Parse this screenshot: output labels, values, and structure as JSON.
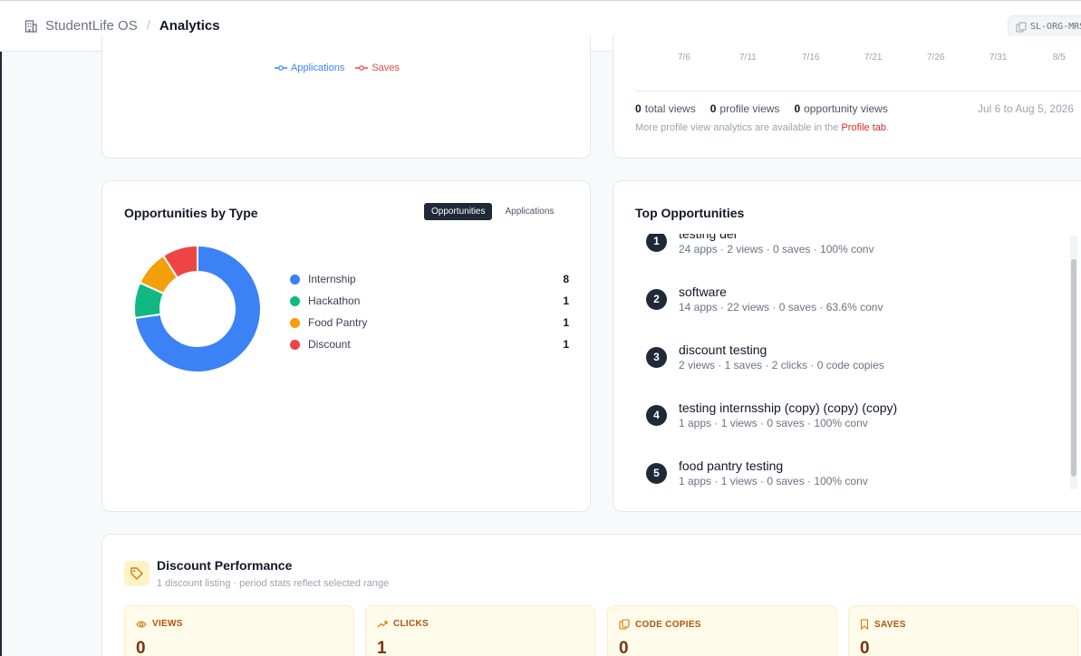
{
  "header": {
    "org_name": "StudentLife OS",
    "separator": "/",
    "page_title": "Analytics",
    "org_code": "SL-ORG-MRS"
  },
  "trend_chart": {
    "legend": [
      {
        "label": "Applications",
        "color": "#3b82f6"
      },
      {
        "label": "Saves",
        "color": "#ef4444"
      }
    ]
  },
  "views_chart": {
    "x_ticks": [
      "7/6",
      "7/11",
      "7/16",
      "7/21",
      "7/26",
      "7/31",
      "8/5"
    ],
    "total_views": "0",
    "total_views_label": "total views",
    "profile_views": "0",
    "profile_views_label": "profile views",
    "opportunity_views": "0",
    "opportunity_views_label": "opportunity views",
    "date_range": "Jul 6 to Aug 5, 2026",
    "note_prefix": "More profile view analytics are available in the ",
    "note_link": "Profile tab",
    "note_suffix": "."
  },
  "opportunities_by_type": {
    "title": "Opportunities by Type",
    "toggle": {
      "opportunities": "Opportunities",
      "applications": "Applications",
      "selected": "Opportunities"
    }
  },
  "chart_data": {
    "type": "pie",
    "donut": true,
    "categories": [
      "Internship",
      "Hackathon",
      "Food Pantry",
      "Discount"
    ],
    "values": [
      8,
      1,
      1,
      1
    ],
    "colors": [
      "#3b82f6",
      "#10b981",
      "#f59e0b",
      "#ef4444"
    ]
  },
  "top_opportunities": {
    "title": "Top Opportunities",
    "items": [
      {
        "rank": "1",
        "name": "testing del",
        "meta": "24 apps · 2 views · 0 saves · 100% conv"
      },
      {
        "rank": "2",
        "name": "software",
        "meta": "14 apps · 22 views · 0 saves · 63.6% conv"
      },
      {
        "rank": "3",
        "name": "discount testing",
        "meta": "2 views · 1 saves · 2 clicks · 0 code copies"
      },
      {
        "rank": "4",
        "name": "testing internsship (copy) (copy) (copy)",
        "meta": "1 apps · 1 views · 0 saves · 100% conv"
      },
      {
        "rank": "5",
        "name": "food pantry testing",
        "meta": "1 apps · 1 views · 0 saves · 100% conv"
      }
    ]
  },
  "discount_performance": {
    "title": "Discount Performance",
    "subtitle": "1 discount listing · period stats reflect selected range",
    "stats": [
      {
        "label": "VIEWS",
        "value": "0",
        "icon": "eye-icon"
      },
      {
        "label": "CLICKS",
        "value": "1",
        "icon": "trend-icon"
      },
      {
        "label": "CODE COPIES",
        "value": "0",
        "icon": "copy-icon"
      },
      {
        "label": "SAVES",
        "value": "0",
        "icon": "bookmark-icon"
      }
    ]
  }
}
